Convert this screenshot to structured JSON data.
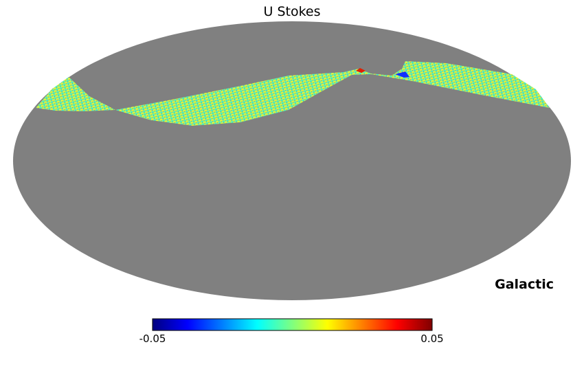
{
  "chart_data": {
    "type": "heatmap",
    "projection": "mollweide",
    "title": "U Stokes",
    "coord_label": "Galactic",
    "colormap": "jet",
    "colorbar": {
      "min": -0.05,
      "max": 0.05,
      "min_label": "-0.05",
      "max_label": "0.05"
    },
    "unseen_color": "#808080",
    "colormap_stops": [
      "#00007f",
      "#0000ff",
      "#007fff",
      "#00ffff",
      "#7fff7f",
      "#ffff00",
      "#ff7f00",
      "#ff0000",
      "#7f0000"
    ]
  }
}
